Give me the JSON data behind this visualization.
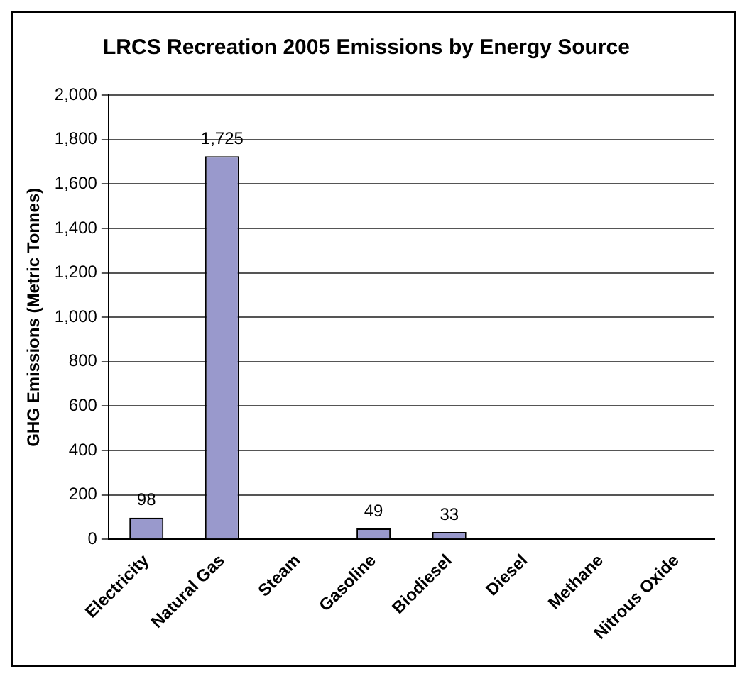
{
  "chart_data": {
    "type": "bar",
    "title": "LRCS Recreation 2005 Emissions by Energy Source",
    "ylabel": "GHG Emissions (Metric Tonnes)",
    "categories": [
      "Electricity",
      "Natural Gas",
      "Steam",
      "Gasoline",
      "Biodiesel",
      "Diesel",
      "Methane",
      "Nitrous Oxide"
    ],
    "values": [
      98,
      1725,
      0,
      49,
      33,
      0,
      0,
      0
    ],
    "value_labels": [
      "98",
      "1,725",
      null,
      "49",
      "33",
      null,
      null,
      null
    ],
    "color": "#9999cc",
    "ylim": [
      0,
      2000
    ],
    "yticks": [
      {
        "value": 0,
        "label": "0"
      },
      {
        "value": 200,
        "label": "200"
      },
      {
        "value": 400,
        "label": "400"
      },
      {
        "value": 600,
        "label": "600"
      },
      {
        "value": 800,
        "label": "800"
      },
      {
        "value": 1000,
        "label": "1,000"
      },
      {
        "value": 1200,
        "label": "1,200"
      },
      {
        "value": 1400,
        "label": "1,400"
      },
      {
        "value": 1600,
        "label": "1,600"
      },
      {
        "value": 1800,
        "label": "1,800"
      },
      {
        "value": 2000,
        "label": "2,000"
      }
    ],
    "grid": "y",
    "legend": false
  }
}
